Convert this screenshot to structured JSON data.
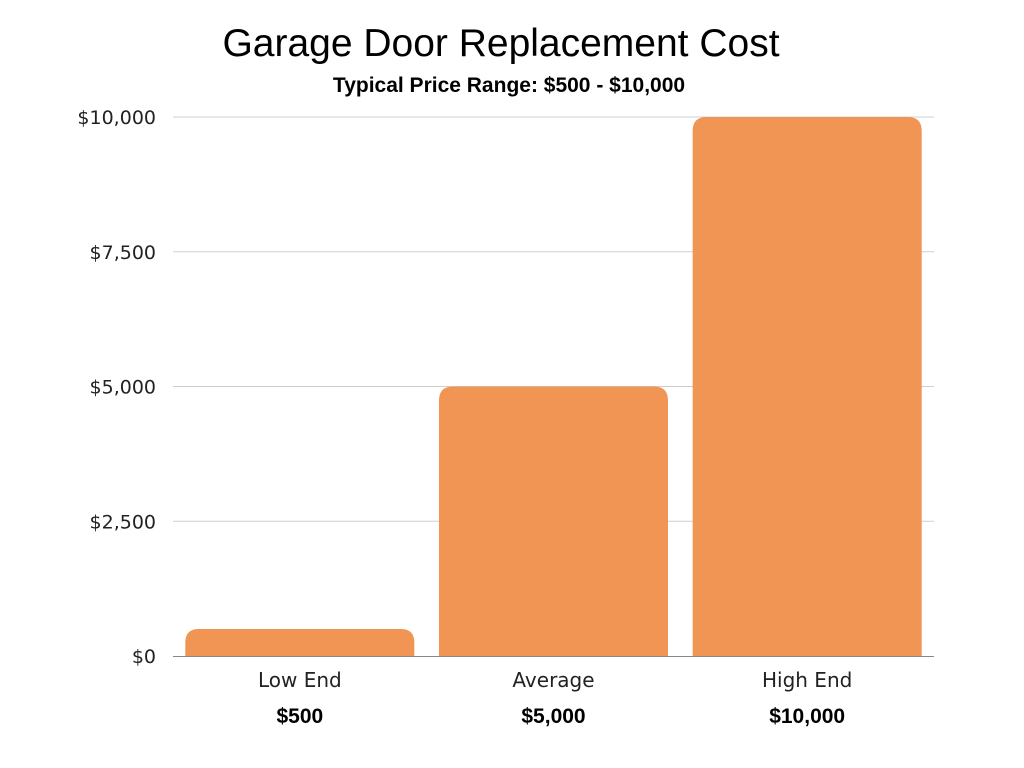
{
  "chart_data": {
    "type": "bar",
    "title": "Garage Door Replacement Cost",
    "subtitle": "Typical Price Range: $500 - $10,000",
    "categories": [
      "Low End",
      "Average",
      "High End"
    ],
    "values": [
      500,
      5000,
      10000
    ],
    "data_labels": [
      "$500",
      "$5,000",
      "$10,000"
    ],
    "y_ticks": [
      0,
      2500,
      5000,
      7500,
      10000
    ],
    "y_tick_labels": [
      "$0",
      "$2,500",
      "$5,000",
      "$7,500",
      "$10,000"
    ],
    "ylim": [
      0,
      10000
    ],
    "xlabel": "",
    "ylabel": "",
    "grid": true,
    "legend": "none",
    "bar_color": "#F09553",
    "grid_color": "#CFCFCF",
    "axis_color": "#888888"
  }
}
